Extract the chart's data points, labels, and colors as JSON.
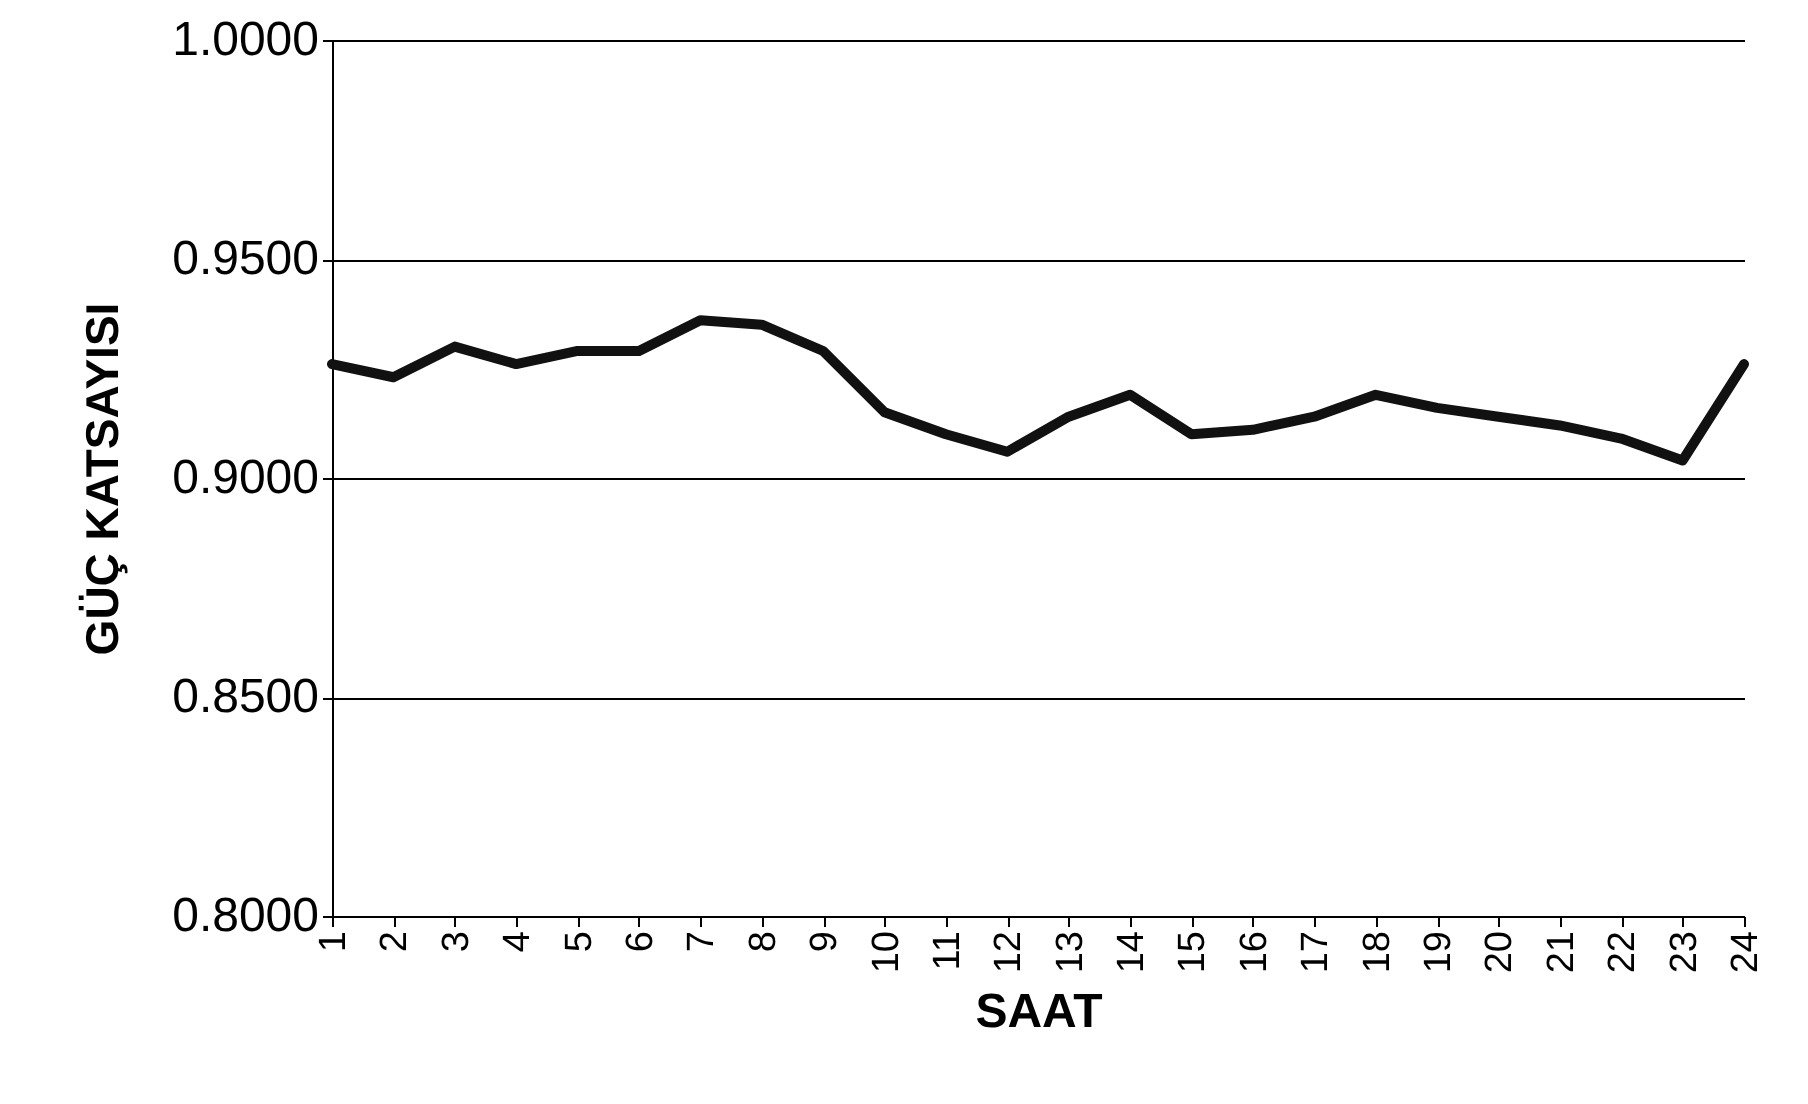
{
  "chart_data": {
    "type": "line",
    "xlabel": "SAAT",
    "ylabel": "GÜÇ KATSAYISI",
    "categories": [
      "1",
      "2",
      "3",
      "4",
      "5",
      "6",
      "7",
      "8",
      "9",
      "10",
      "11",
      "12",
      "13",
      "14",
      "15",
      "16",
      "17",
      "18",
      "19",
      "20",
      "21",
      "22",
      "23",
      "24"
    ],
    "series": [
      {
        "color": "#111111",
        "values": [
          0.926,
          0.923,
          0.93,
          0.926,
          0.929,
          0.929,
          0.936,
          0.935,
          0.929,
          0.915,
          0.91,
          0.906,
          0.914,
          0.919,
          0.91,
          0.911,
          0.914,
          0.919,
          0.916,
          0.914,
          0.912,
          0.909,
          0.904,
          0.926
        ]
      }
    ],
    "ylim": [
      0.8,
      1.0
    ],
    "yticks": [
      {
        "value": 0.8,
        "label": "0.8000"
      },
      {
        "value": 0.85,
        "label": "0.8500"
      },
      {
        "value": 0.9,
        "label": "0.9000"
      },
      {
        "value": 0.95,
        "label": "0.9500"
      },
      {
        "value": 1.0,
        "label": "1.0000"
      }
    ],
    "grid": "y",
    "marker": "none",
    "line_style": "solid"
  }
}
